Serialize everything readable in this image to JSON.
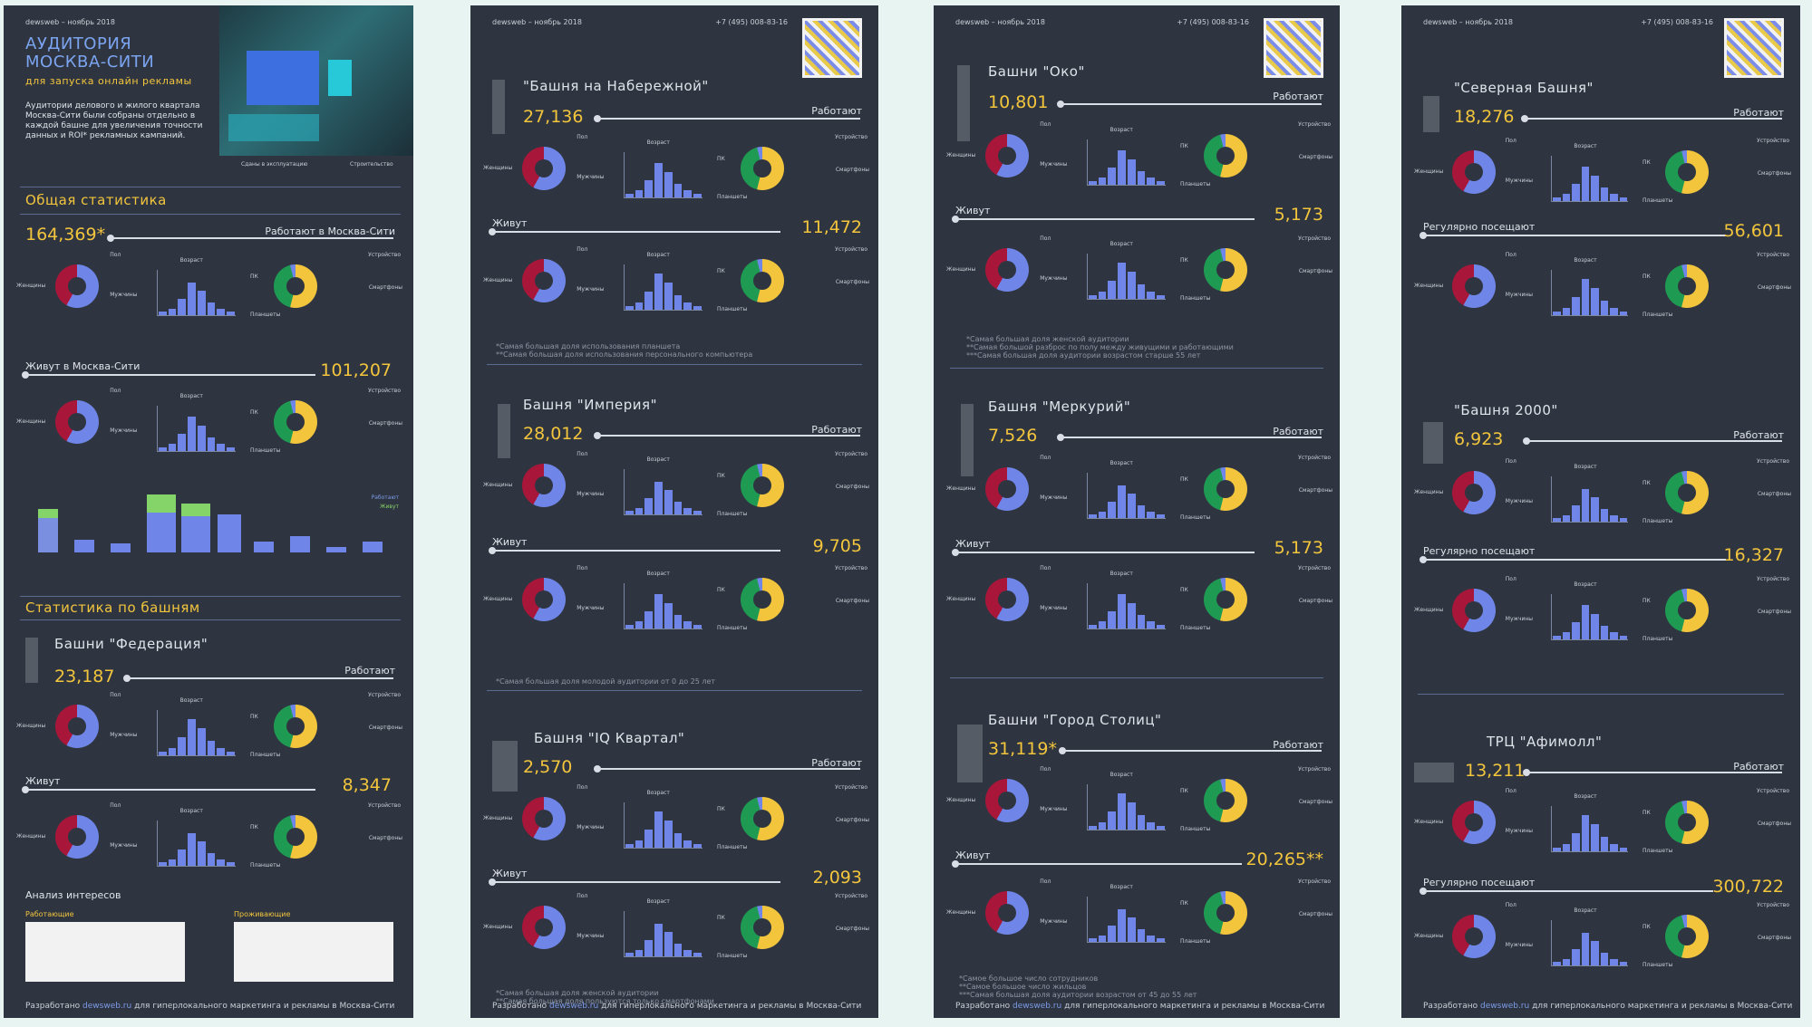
{
  "header": {
    "left": "dewsweb – ноябрь 2018",
    "phone": "+7 (495) 008-83-16"
  },
  "footer": {
    "pre": "Разработано ",
    "link": "dewsweb.ru",
    "post": " для гиперлокального маркетинга и рекламы в Москва-Сити"
  },
  "labels": {
    "works": "Работают",
    "lives": "Живут",
    "visits": "Регулярно посещают",
    "gender": "Пол",
    "age": "Возраст",
    "device": "Устройство",
    "women": "Женщины",
    "men": "Мужчины",
    "pc": "ПК",
    "smart": "Смартфоны",
    "tab": "Планшеты"
  },
  "p1": {
    "title1": "АУДИТОРИЯ",
    "title2": "МОСКВА-СИТИ",
    "subtitle": "для запуска онлайн рекламы",
    "intro": "Аудитории делового и жилого квартала Москва-Сити были собраны отдельно в каждой башне для увеличения точности данных и ROI* рекламных кампаний.",
    "legend1": "Сданы в эксплуатацию",
    "legend2": "Строительство",
    "sec_general": "Общая статистика",
    "total": "164,369*",
    "total_label": "Работают в Москва-Сити",
    "live": "101,207",
    "live_label": "Живут в Москва-Сити",
    "sec_towers": "Статистика по башням",
    "fed_title": "Башни \"Федерация\"",
    "fed_work": "23,187",
    "fed_live": "8,347",
    "interests": "Анализ интересов",
    "int_work": "Работающие",
    "int_live": "Проживающие",
    "chart_legend1": "Работают",
    "chart_legend2": "Живут"
  },
  "p2": {
    "t1": "\"Башня на Набережной\"",
    "t1_work": "27,136",
    "t1_live": "11,472",
    "t1_note": "*Самая большая доля использования планшета\n**Самая большая доля использования персонального компьютера",
    "t2": "Башня \"Империя\"",
    "t2_work": "28,012",
    "t2_live": "9,705",
    "t2_note": "*Самая большая доля молодой аудитории от 0 до 25 лет",
    "t3": "Башня \"IQ Квартал\"",
    "t3_work": "2,570",
    "t3_live": "2,093",
    "t3_note": "*Самая большая доля женской аудитории\n**Самая большая доля пользуются только смартфонами"
  },
  "p3": {
    "t1": "Башни \"Око\"",
    "t1_work": "10,801",
    "t1_live": "5,173",
    "t1_note": "*Самая большая доля женской аудитории\n**Самая большой разброс по полу между живущими и работающими\n***Самая большая доля аудитории возрастом старше 55 лет",
    "t2": "Башня \"Меркурий\"",
    "t2_work": "7,526",
    "t2_live": "5,173",
    "t3": "Башни \"Город Столиц\"",
    "t3_work": "31,119*",
    "t3_live": "20,265**",
    "t3_note": "*Самое большое число сотрудников\n**Самое большое число жильцов\n***Самая большая доля аудитории возрастом от 45 до 55 лет"
  },
  "p4": {
    "t1": "\"Северная Башня\"",
    "t1_work": "18,276",
    "t1_visit": "56,601",
    "t2": "\"Башня 2000\"",
    "t2_work": "6,923",
    "t2_visit": "16,327",
    "t3": "ТРЦ \"Афимолл\"",
    "t3_work": "13,211",
    "t3_visit": "300,722"
  }
}
